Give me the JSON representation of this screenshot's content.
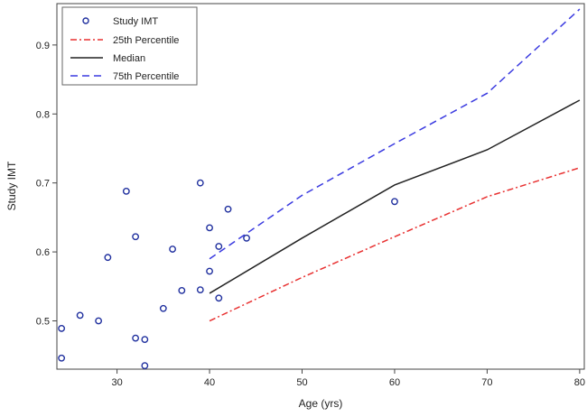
{
  "chart_data": {
    "type": "scatter",
    "xlabel": "Age (yrs)",
    "ylabel": "Study IMT",
    "xlim": [
      23.5,
      80.5
    ],
    "ylim": [
      0.43,
      0.96
    ],
    "x_ticks": [
      30,
      40,
      50,
      60,
      70,
      80
    ],
    "y_ticks": [
      0.5,
      0.6,
      0.7,
      0.8,
      0.9
    ],
    "x_tick_labels": [
      "30",
      "40",
      "50",
      "60",
      "70",
      "80"
    ],
    "y_tick_labels": [
      "0.5",
      "0.6",
      "0.7",
      "0.8",
      "0.9"
    ],
    "legend_placement": "top-left",
    "grid": false,
    "scatter": {
      "name": "Study IMT",
      "color": "#1f2f9e",
      "points": [
        {
          "x": 24,
          "y": 0.489
        },
        {
          "x": 24,
          "y": 0.446
        },
        {
          "x": 26,
          "y": 0.508
        },
        {
          "x": 28,
          "y": 0.5
        },
        {
          "x": 29,
          "y": 0.592
        },
        {
          "x": 31,
          "y": 0.688
        },
        {
          "x": 32,
          "y": 0.622
        },
        {
          "x": 32,
          "y": 0.475
        },
        {
          "x": 33,
          "y": 0.473
        },
        {
          "x": 33,
          "y": 0.435
        },
        {
          "x": 35,
          "y": 0.518
        },
        {
          "x": 36,
          "y": 0.604
        },
        {
          "x": 37,
          "y": 0.544
        },
        {
          "x": 39,
          "y": 0.7
        },
        {
          "x": 39,
          "y": 0.545
        },
        {
          "x": 40,
          "y": 0.635
        },
        {
          "x": 40,
          "y": 0.572
        },
        {
          "x": 41,
          "y": 0.608
        },
        {
          "x": 41,
          "y": 0.533
        },
        {
          "x": 42,
          "y": 0.662
        },
        {
          "x": 44,
          "y": 0.62
        },
        {
          "x": 60,
          "y": 0.673
        }
      ]
    },
    "series": [
      {
        "name": "25th Percentile",
        "style": "dash-dot",
        "color": "#e83030",
        "x": [
          40,
          50,
          60,
          70,
          80
        ],
        "y": [
          0.5,
          0.563,
          0.622,
          0.68,
          0.722
        ]
      },
      {
        "name": "Median",
        "style": "solid",
        "color": "#222222",
        "x": [
          40,
          50,
          60,
          70,
          80
        ],
        "y": [
          0.54,
          0.62,
          0.697,
          0.748,
          0.82
        ]
      },
      {
        "name": "75th Percentile",
        "style": "dashed",
        "color": "#3a3ae0",
        "x": [
          40,
          50,
          60,
          70,
          80
        ],
        "y": [
          0.59,
          0.682,
          0.757,
          0.83,
          0.952
        ]
      }
    ]
  }
}
